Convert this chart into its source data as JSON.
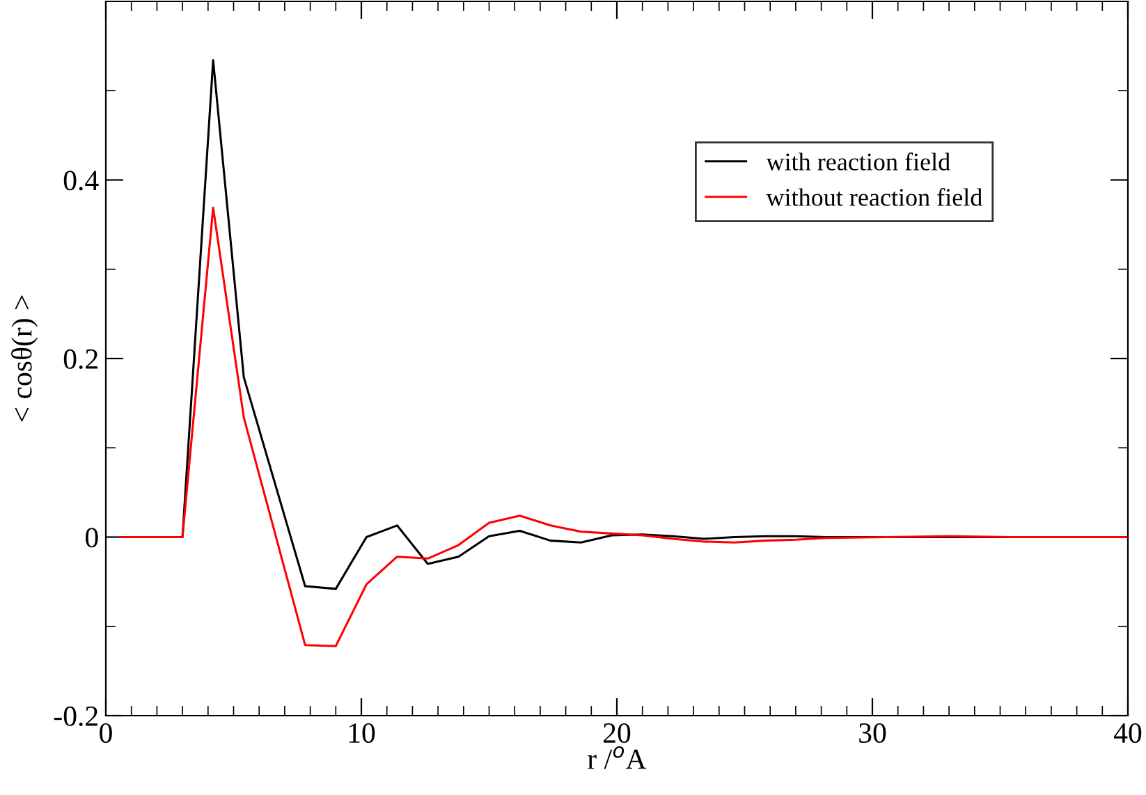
{
  "chart_data": {
    "type": "line",
    "xlabel": "r /$^{o}$A",
    "ylabel": "< cosθ(r) >",
    "x": [
      0.6,
      1.8,
      3.0,
      4.2,
      5.4,
      7.8,
      9.0,
      10.2,
      11.4,
      12.6,
      13.8,
      15.0,
      16.2,
      17.4,
      18.6,
      19.8,
      21.0,
      22.2,
      23.4,
      24.6,
      25.8,
      27.0,
      28.2,
      30.6,
      33.0,
      35.4,
      37.8,
      40.0
    ],
    "series": [
      {
        "name": "with reaction field",
        "color": "#000000",
        "values": [
          0,
          0,
          0,
          0.534,
          0.179,
          -0.055,
          -0.058,
          0.0,
          0.013,
          -0.03,
          -0.022,
          0.001,
          0.007,
          -0.004,
          -0.006,
          0.002,
          0.003,
          0.001,
          -0.002,
          0.0,
          0.001,
          0.001,
          0.0,
          0.0,
          0.0,
          0.0,
          0.0,
          0.0
        ]
      },
      {
        "name": "without reaction field",
        "color": "#ff0000",
        "values": [
          0,
          0,
          0,
          0.369,
          0.134,
          -0.121,
          -0.122,
          -0.053,
          -0.022,
          -0.024,
          -0.009,
          0.016,
          0.024,
          0.013,
          0.006,
          0.004,
          0.002,
          -0.002,
          -0.005,
          -0.006,
          -0.004,
          -0.003,
          -0.001,
          0.0,
          0.001,
          0.0,
          0.0,
          0.0
        ]
      }
    ],
    "xlim": [
      0,
      40
    ],
    "ylim": [
      -0.2,
      0.6
    ],
    "xticks": [
      0,
      {
        "value": 1,
        "label": null
      },
      {
        "value": 2,
        "label": null
      },
      {
        "value": 3,
        "label": null
      },
      {
        "value": 4,
        "label": null
      },
      {
        "value": 5,
        "label": null
      },
      {
        "value": 6,
        "label": null
      },
      {
        "value": 7,
        "label": null
      },
      {
        "value": 8,
        "label": null
      },
      {
        "value": 9,
        "label": null
      },
      10,
      {
        "value": 11,
        "label": null
      },
      {
        "value": 12,
        "label": null
      },
      {
        "value": 13,
        "label": null
      },
      {
        "value": 14,
        "label": null
      },
      {
        "value": 15,
        "label": null
      },
      {
        "value": 16,
        "label": null
      },
      {
        "value": 17,
        "label": null
      },
      {
        "value": 18,
        "label": null
      },
      {
        "value": 19,
        "label": null
      },
      20,
      {
        "value": 21,
        "label": null
      },
      {
        "value": 22,
        "label": null
      },
      {
        "value": 23,
        "label": null
      },
      {
        "value": 24,
        "label": null
      },
      {
        "value": 25,
        "label": null
      },
      {
        "value": 26,
        "label": null
      },
      {
        "value": 27,
        "label": null
      },
      {
        "value": 28,
        "label": null
      },
      {
        "value": 29,
        "label": null
      },
      30,
      {
        "value": 31,
        "label": null
      },
      {
        "value": 32,
        "label": null
      },
      {
        "value": 33,
        "label": null
      },
      {
        "value": 34,
        "label": null
      },
      {
        "value": 35,
        "label": null
      },
      {
        "value": 36,
        "label": null
      },
      {
        "value": 37,
        "label": null
      },
      {
        "value": 38,
        "label": null
      },
      {
        "value": 39,
        "label": null
      },
      40
    ],
    "yticks": [
      -0.2,
      {
        "value": -0.1,
        "label": null
      },
      0,
      {
        "value": 0.1,
        "label": null
      },
      0.2,
      {
        "value": 0.3,
        "label": null
      },
      0.4,
      {
        "value": 0.5,
        "label": null
      }
    ],
    "legend": "top right",
    "grid": false,
    "marker": "none",
    "line_style": "solid"
  }
}
